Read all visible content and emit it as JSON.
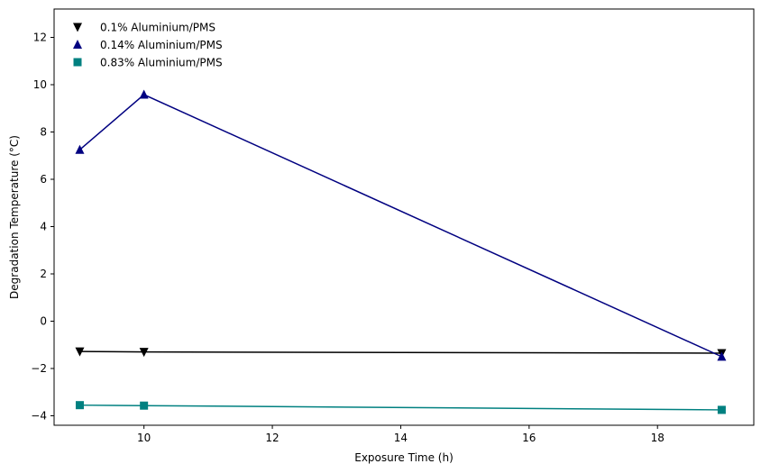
{
  "chart_data": {
    "type": "line",
    "xlabel": "Exposure Time (h)",
    "ylabel": "Degradation Temperature (°C)",
    "xlim": [
      8.6,
      19.5
    ],
    "ylim": [
      -4.4,
      13.2
    ],
    "xticks": [
      10,
      12,
      14,
      16,
      18
    ],
    "yticks": [
      -4,
      -2,
      0,
      2,
      4,
      6,
      8,
      10,
      12
    ],
    "grid": false,
    "legend_position": "top-left",
    "series": [
      {
        "name": "0.1% Aluminium/PMS",
        "color": "#000000",
        "marker": "triangle-down",
        "x": [
          9,
          10,
          19
        ],
        "y": [
          -1.28,
          -1.3,
          -1.35
        ]
      },
      {
        "name": "0.14% Aluminium/PMS",
        "color": "#000080",
        "marker": "triangle-up",
        "x": [
          9,
          10,
          19
        ],
        "y": [
          7.25,
          9.58,
          -1.5
        ]
      },
      {
        "name": "0.83% Aluminium/PMS",
        "color": "#008080",
        "marker": "square",
        "x": [
          9,
          10,
          19
        ],
        "y": [
          -3.55,
          -3.57,
          -3.75
        ]
      }
    ]
  }
}
